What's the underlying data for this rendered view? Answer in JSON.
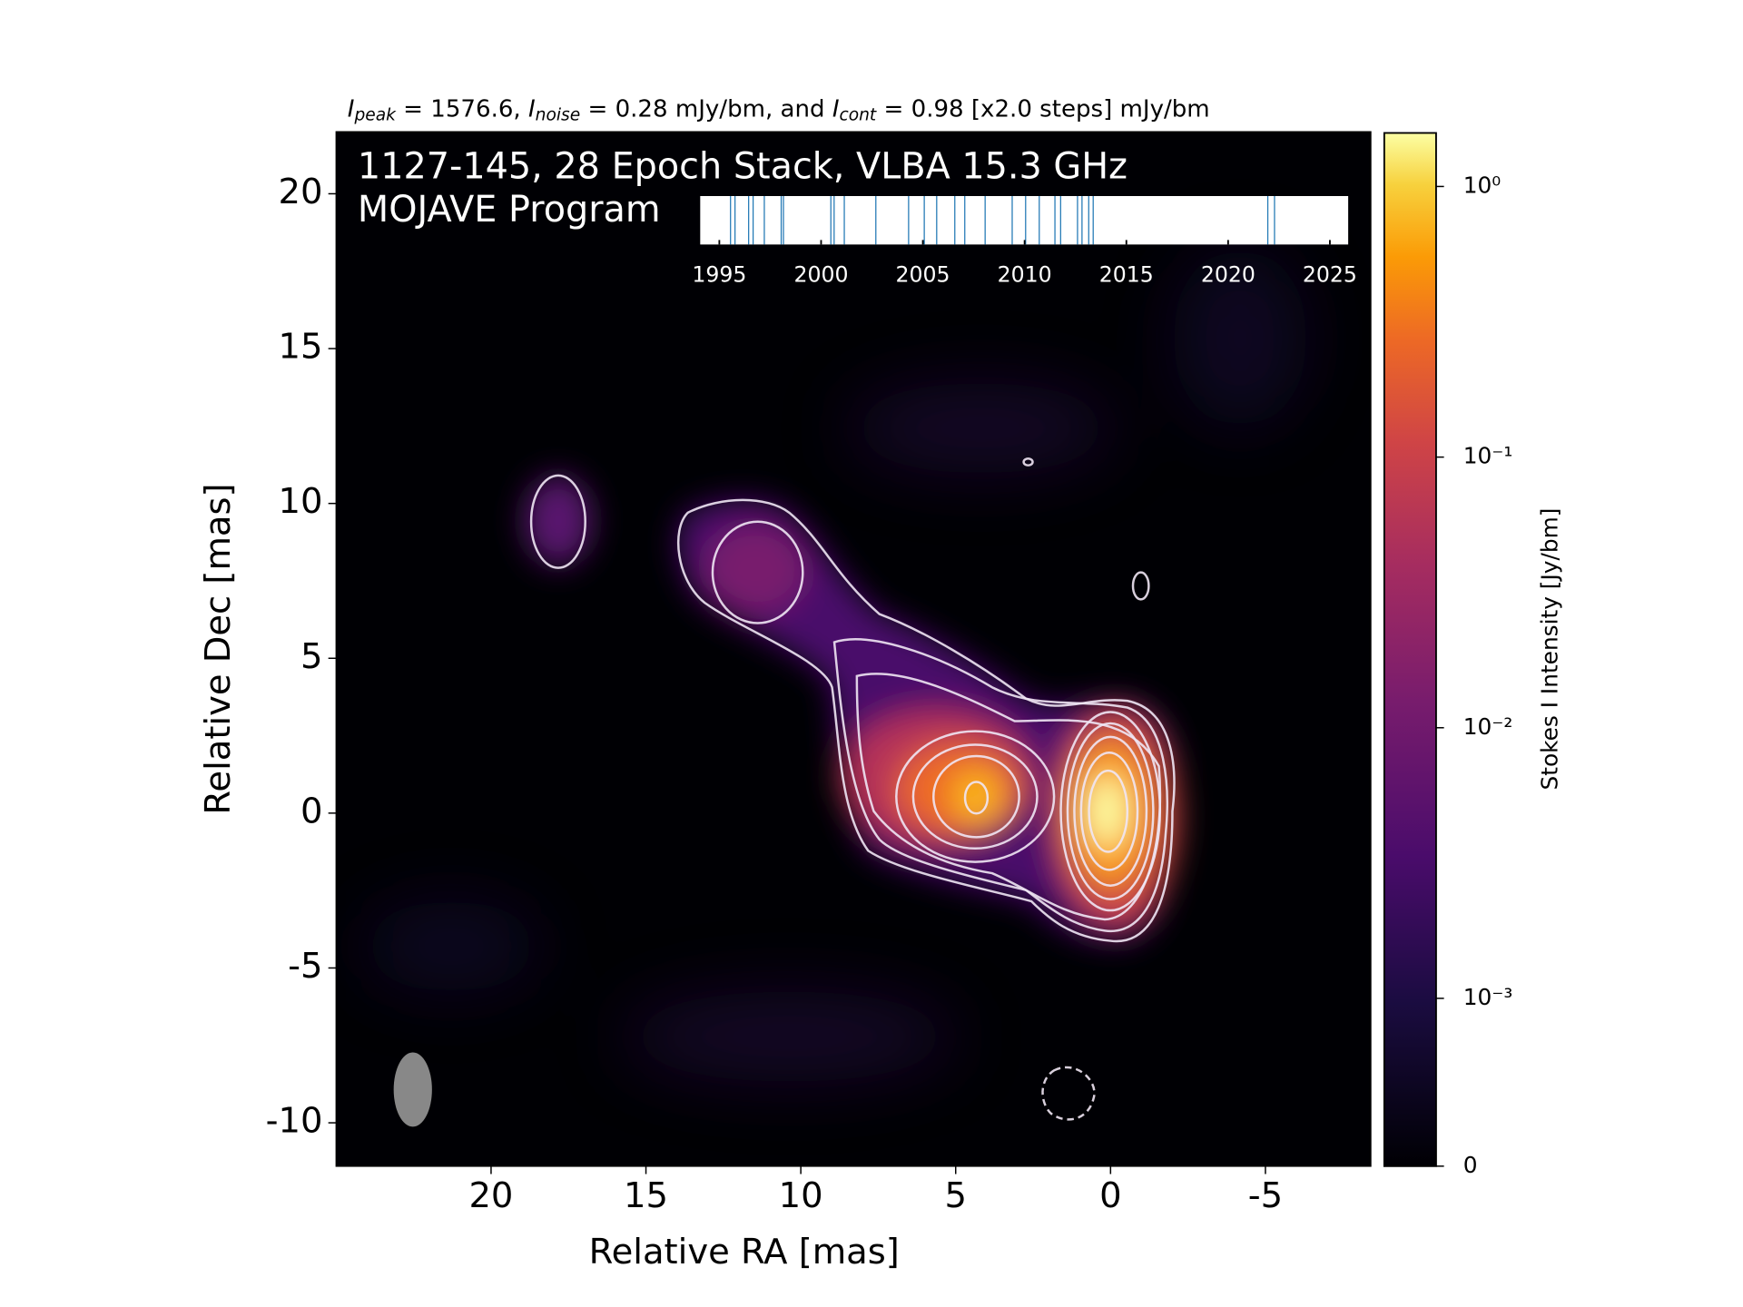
{
  "chart_data": {
    "type": "image",
    "title_segments": [
      "I",
      "peak",
      " = 1576.6, ",
      "I",
      "noise",
      " = 0.28 mJy/bm, and ",
      "I",
      "cont",
      " = 0.98 [x2.0 steps] mJy/bm"
    ],
    "annotations": [
      "1127-145, 28 Epoch Stack, VLBA 15.3 GHz",
      "MOJAVE Program"
    ],
    "xlabel": "Relative RA [mas]",
    "ylabel": "Relative Dec [mas]",
    "xlim": [
      25,
      -8.4
    ],
    "ylim": [
      -11.4,
      22
    ],
    "xticks": [
      20,
      15,
      10,
      5,
      0,
      -5
    ],
    "yticks": [
      20,
      15,
      10,
      5,
      0,
      -5,
      -10
    ],
    "colorbar": {
      "label": "Stokes I Intensity [Jy/bm]",
      "scale": "symlog",
      "linthresh": 0.001,
      "lim": [
        0,
        1.5766
      ],
      "ticks": [
        0,
        {
          "value": 0.001,
          "label": "10⁻³"
        },
        {
          "value": 0.01,
          "label": "10⁻²"
        },
        {
          "value": 0.1,
          "label": "10⁻¹"
        },
        {
          "value": 1,
          "label": "10⁰"
        }
      ]
    },
    "epochs": {
      "color": "#1f77b4",
      "xlim": [
        1994.06,
        2025.9
      ],
      "xticks": [
        1995,
        2000,
        2005,
        2010,
        2015,
        2020,
        2025
      ],
      "dates": [
        1995.55,
        1995.77,
        1996.44,
        1996.66,
        1997.21,
        1998.04,
        1998.15,
        2000.48,
        2000.64,
        2001.14,
        2002.69,
        2004.3,
        2005.07,
        2005.68,
        2006.57,
        2007.06,
        2008.06,
        2009.39,
        2010.05,
        2010.72,
        2011.49,
        2011.77,
        2012.6,
        2012.82,
        2013.15,
        2013.37,
        2021.95,
        2022.28
      ]
    }
  }
}
